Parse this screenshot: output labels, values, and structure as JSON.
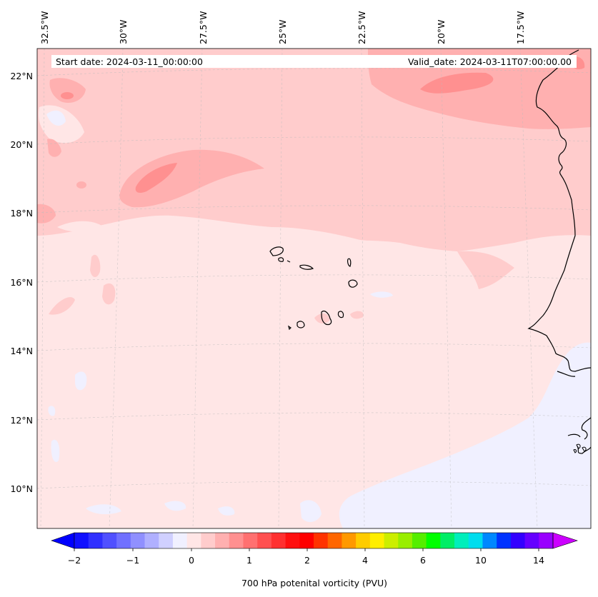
{
  "map": {
    "start_date_text": "Start date: 2024-03-11_00:00:00",
    "valid_date_text": "Valid_date: 2024-03-11T07:00:00.00",
    "background_color": "#ffe6e6",
    "longitude_labels": [
      "32.5°W",
      "30°W",
      "27.5°W",
      "25°W",
      "22.5°W",
      "20°W",
      "17.5°W"
    ],
    "latitude_labels": [
      "22°N",
      "20°N",
      "18°N",
      "16°N",
      "14°N",
      "12°N",
      "10°N"
    ]
  },
  "colorbar": {
    "label": "700 hPa potenital vorticity (PVU)",
    "tick_labels": [
      "−2",
      "−1",
      "0",
      "1",
      "2",
      "4",
      "6",
      "10",
      "14"
    ],
    "under_color": "#0000ff",
    "over_color": "#cc00ff",
    "colors": [
      "#1010ff",
      "#3030ff",
      "#5050ff",
      "#7070ff",
      "#9090ff",
      "#b0b0ff",
      "#d0d0ff",
      "#f0f0ff",
      "#ffe6e6",
      "#ffcccc",
      "#ffb0b0",
      "#ff9090",
      "#ff7070",
      "#ff5050",
      "#ff3030",
      "#ff1010",
      "#ff0000",
      "#ff3300",
      "#ff6600",
      "#ff9900",
      "#ffcc00",
      "#ffee00",
      "#ccee00",
      "#99ee00",
      "#55ee00",
      "#00ff00",
      "#00ee66",
      "#00eebb",
      "#00ddee",
      "#0088ff",
      "#0033ff",
      "#3300ff",
      "#6600ff",
      "#9900ff"
    ]
  }
}
